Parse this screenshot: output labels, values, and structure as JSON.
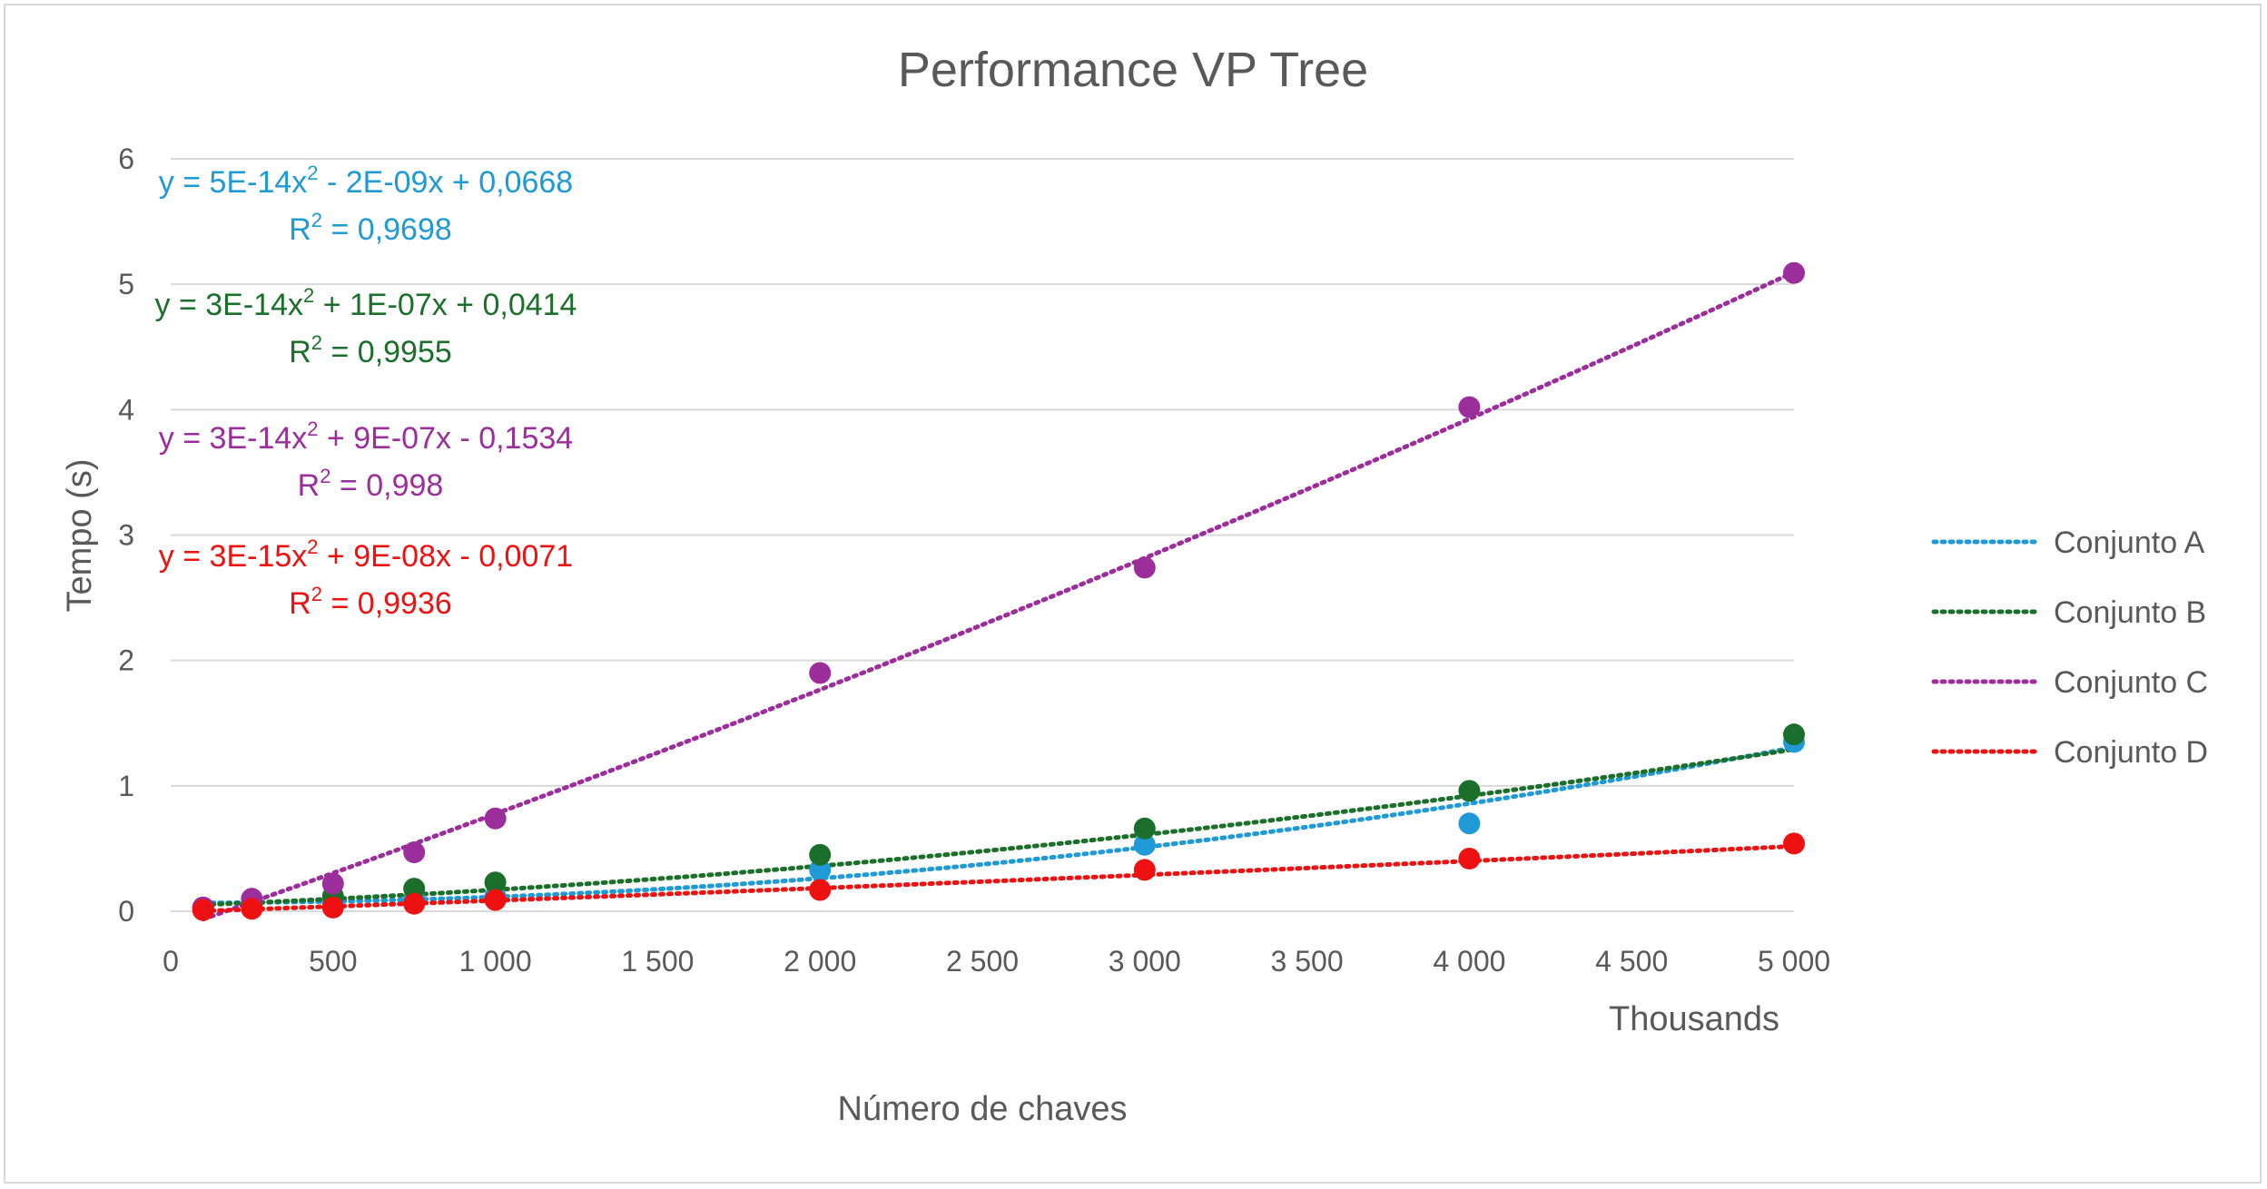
{
  "chart_data": {
    "type": "scatter",
    "title": "Performance VP Tree",
    "xlabel": "Número de chaves",
    "x_unit_label": "Thousands",
    "ylabel": "Tempo (s)",
    "xlim": [
      0,
      5000
    ],
    "ylim": [
      0,
      6
    ],
    "x_ticks": [
      "0",
      "500",
      "1 000",
      "1 500",
      "2 000",
      "2 500",
      "3 000",
      "3 500",
      "4 000",
      "4 500",
      "5 000"
    ],
    "y_ticks": [
      "0",
      "1",
      "2",
      "3",
      "4",
      "5",
      "6"
    ],
    "grid": true,
    "legend_position": "right",
    "x": [
      100,
      250,
      500,
      750,
      1000,
      2000,
      3000,
      4000,
      5000
    ],
    "series": [
      {
        "name": "Conjunto A",
        "color": "#1f9ad6",
        "values": [
          0.02,
          0.04,
          0.07,
          0.1,
          0.12,
          0.33,
          0.53,
          0.7,
          1.35
        ],
        "trend": {
          "type": "polynomial",
          "a": 5e-14,
          "b": -2e-09,
          "c": 0.0668
        },
        "equation": "y = 5E-14x",
        "equation_rest": " - 2E-09x + 0,0668",
        "r2_label": "R",
        "r2_value": " = 0,9698"
      },
      {
        "name": "Conjunto B",
        "color": "#1b6f2a",
        "values": [
          0.03,
          0.06,
          0.12,
          0.18,
          0.23,
          0.45,
          0.66,
          0.96,
          1.41
        ],
        "trend": {
          "type": "polynomial",
          "a": 3e-14,
          "b": 1e-07,
          "c": 0.0414
        },
        "equation": "y = 3E-14x",
        "equation_rest": " + 1E-07x + 0,0414",
        "r2_label": "R",
        "r2_value": " = 0,9955"
      },
      {
        "name": "Conjunto C",
        "color": "#9c2e9c",
        "values": [
          0.03,
          0.1,
          0.22,
          0.47,
          0.74,
          1.9,
          2.74,
          4.02,
          5.09
        ],
        "trend": {
          "type": "polynomial",
          "a": 3e-14,
          "b": 9e-07,
          "c": -0.1534
        },
        "equation": "y = 3E-14x",
        "equation_rest": " + 9E-07x - 0,1534",
        "r2_label": "R",
        "r2_value": " = 0,998"
      },
      {
        "name": "Conjunto D",
        "color": "#ee1111",
        "values": [
          0.01,
          0.02,
          0.03,
          0.06,
          0.09,
          0.17,
          0.33,
          0.42,
          0.54
        ],
        "trend": {
          "type": "polynomial",
          "a": 3e-15,
          "b": 9e-08,
          "c": -0.0071
        },
        "equation": "y = 3E-15x",
        "equation_rest": " + 9E-08x - 0,0071",
        "r2_label": "R",
        "r2_value": " = 0,9936"
      }
    ]
  },
  "colors": {
    "text": "#595959",
    "gridline": "#d9d9d9",
    "frame": "#d9d9d9",
    "background": "#ffffff"
  }
}
